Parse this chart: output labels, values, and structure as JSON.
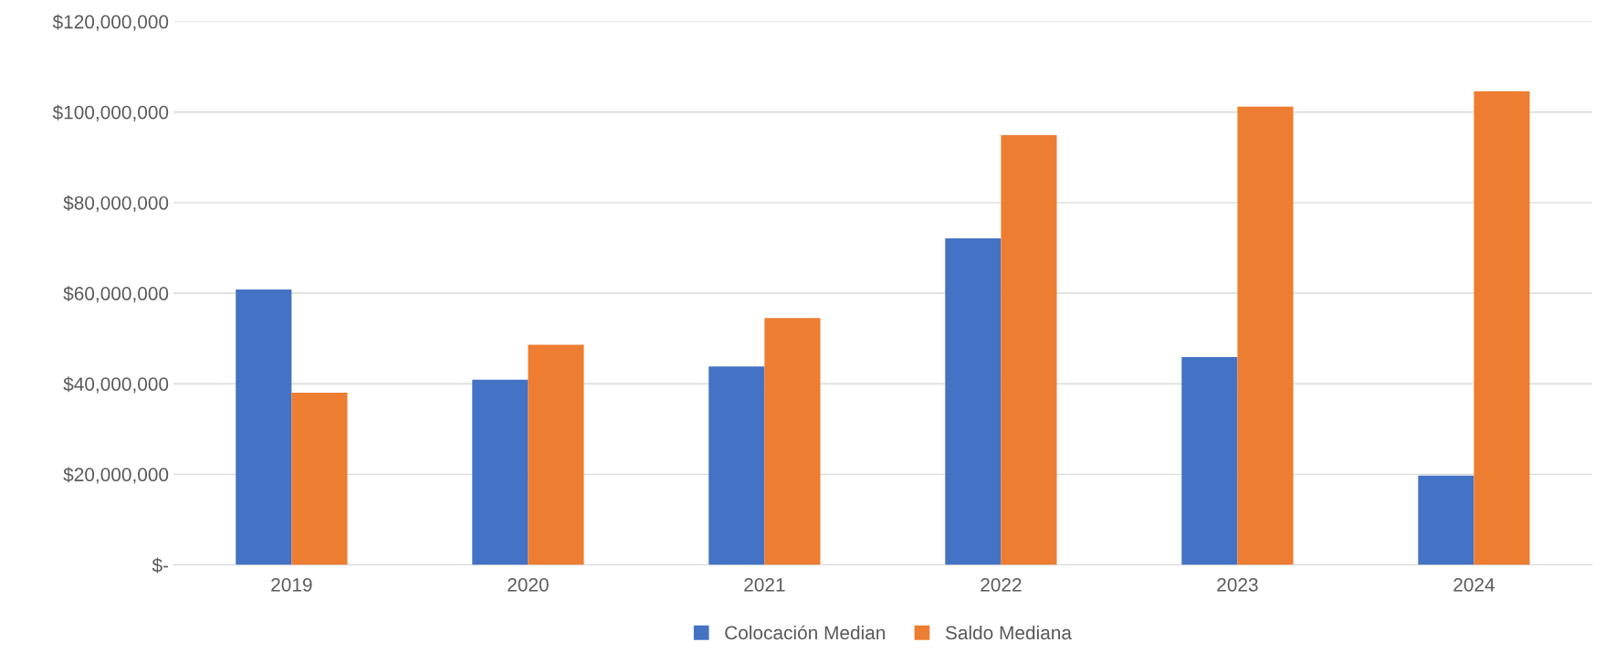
{
  "chart_data": {
    "type": "bar",
    "categories": [
      "2019",
      "2020",
      "2021",
      "2022",
      "2023",
      "2024"
    ],
    "series": [
      {
        "name": "Colocación Median",
        "color": "#4472c4",
        "values": [
          60800000,
          40900000,
          43800000,
          72100000,
          45900000,
          19700000
        ]
      },
      {
        "name": "Saldo Mediana",
        "color": "#ed7d31",
        "values": [
          38000000,
          48600000,
          54500000,
          94900000,
          101200000,
          104600000
        ]
      }
    ],
    "ylim": [
      0,
      120000000
    ],
    "yticks": [
      {
        "value": 0,
        "label": "$-"
      },
      {
        "value": 20000000,
        "label": "$20,000,000"
      },
      {
        "value": 40000000,
        "label": "$40,000,000"
      },
      {
        "value": 60000000,
        "label": "$60,000,000"
      },
      {
        "value": 80000000,
        "label": "$80,000,000"
      },
      {
        "value": 100000000,
        "label": "$100,000,000"
      },
      {
        "value": 120000000,
        "label": "$120,000,000"
      }
    ],
    "grid": "y",
    "legend": "bottom"
  }
}
